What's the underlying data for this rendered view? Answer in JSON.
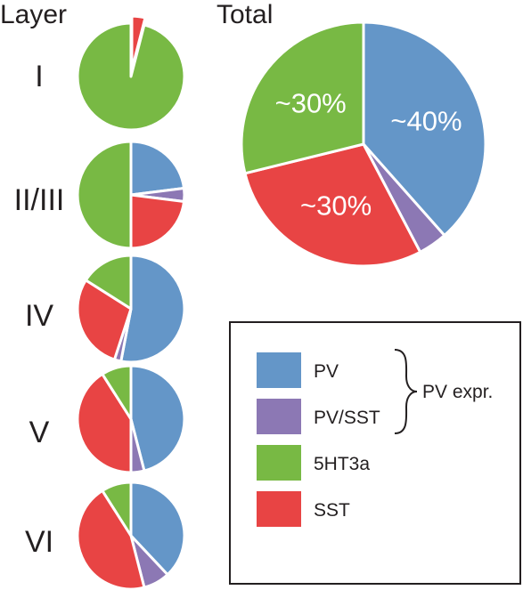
{
  "headers": {
    "layer": "Layer",
    "total": "Total"
  },
  "colors": {
    "PV": "#6496c8",
    "PV/SST": "#8c78b4",
    "5HT3a": "#78b944",
    "SST": "#e84444"
  },
  "chart_data": [
    {
      "type": "pie",
      "layer": "I",
      "slices": [
        {
          "label": "SST",
          "value": 4
        },
        {
          "label": "5HT3a",
          "value": 96
        }
      ]
    },
    {
      "type": "pie",
      "layer": "II/III",
      "slices": [
        {
          "label": "PV",
          "value": 23
        },
        {
          "label": "PV/SST",
          "value": 4
        },
        {
          "label": "SST",
          "value": 23
        },
        {
          "label": "5HT3a",
          "value": 50
        }
      ]
    },
    {
      "type": "pie",
      "layer": "IV",
      "slices": [
        {
          "label": "PV",
          "value": 53
        },
        {
          "label": "PV/SST",
          "value": 2
        },
        {
          "label": "SST",
          "value": 29
        },
        {
          "label": "5HT3a",
          "value": 16
        }
      ]
    },
    {
      "type": "pie",
      "layer": "V",
      "slices": [
        {
          "label": "PV",
          "value": 46
        },
        {
          "label": "PV/SST",
          "value": 4
        },
        {
          "label": "SST",
          "value": 41
        },
        {
          "label": "5HT3a",
          "value": 9
        }
      ]
    },
    {
      "type": "pie",
      "layer": "VI",
      "slices": [
        {
          "label": "PV",
          "value": 38
        },
        {
          "label": "PV/SST",
          "value": 8
        },
        {
          "label": "SST",
          "value": 45
        },
        {
          "label": "5HT3a",
          "value": 9
        }
      ]
    },
    {
      "type": "pie",
      "title": "Total",
      "slices": [
        {
          "label": "PV",
          "value": 40,
          "text": "~40%"
        },
        {
          "label": "PV/SST",
          "value": 4,
          "text": ""
        },
        {
          "label": "SST",
          "value": 30,
          "text": "~30%"
        },
        {
          "label": "5HT3a",
          "value": 30,
          "text": "~30%"
        }
      ]
    }
  ],
  "legend": {
    "items": [
      "PV",
      "PV/SST",
      "5HT3a",
      "SST"
    ],
    "group_label": "PV expr."
  }
}
